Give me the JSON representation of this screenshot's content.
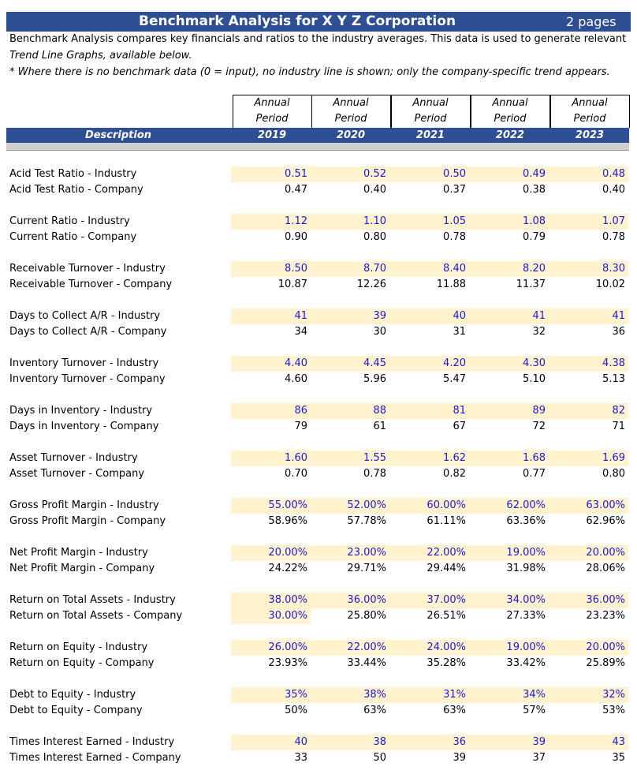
{
  "header": {
    "title": "Benchmark Analysis for X Y Z Corporation",
    "pages": "2 pages"
  },
  "intro": [
    "Benchmark Analysis compares key financials and ratios to the industry averages. This data is used to generate relevant",
    "Trend Line Graphs, available below.",
    "* Where there is no benchmark data (0 = input), no industry line is shown; only the company-specific trend appears."
  ],
  "table": {
    "description": "Description",
    "columns": [
      {
        "line1": "Annual",
        "line2": "Period",
        "year": "2019"
      },
      {
        "line1": "Annual",
        "line2": "Period",
        "year": "2020"
      },
      {
        "line1": "Annual",
        "line2": "Period",
        "year": "2021"
      },
      {
        "line1": "Annual",
        "line2": "Period",
        "year": "2022"
      },
      {
        "line1": "Annual",
        "line2": "Period",
        "year": "2023"
      }
    ],
    "rows": [
      {
        "label": "Acid Test Ratio - Industry",
        "values": [
          "0.51",
          "0.52",
          "0.50",
          "0.49",
          "0.48"
        ]
      },
      {
        "label": "Acid Test Ratio - Company",
        "values": [
          "0.47",
          "0.40",
          "0.37",
          "0.38",
          "0.40"
        ]
      },
      {
        "label": "Current Ratio - Industry",
        "values": [
          "1.12",
          "1.10",
          "1.05",
          "1.08",
          "1.07"
        ]
      },
      {
        "label": "Current Ratio - Company",
        "values": [
          "0.90",
          "0.80",
          "0.78",
          "0.79",
          "0.78"
        ]
      },
      {
        "label": "Receivable Turnover - Industry",
        "values": [
          "8.50",
          "8.70",
          "8.40",
          "8.20",
          "8.30"
        ]
      },
      {
        "label": "Receivable Turnover - Company",
        "values": [
          "10.87",
          "12.26",
          "11.88",
          "11.37",
          "10.02"
        ]
      },
      {
        "label": "Days to Collect A/R - Industry",
        "values": [
          "41",
          "39",
          "40",
          "41",
          "41"
        ]
      },
      {
        "label": "Days to Collect A/R - Company",
        "values": [
          "34",
          "30",
          "31",
          "32",
          "36"
        ]
      },
      {
        "label": "Inventory Turnover - Industry",
        "values": [
          "4.40",
          "4.45",
          "4.20",
          "4.30",
          "4.38"
        ]
      },
      {
        "label": "Inventory Turnover - Company",
        "values": [
          "4.60",
          "5.96",
          "5.47",
          "5.10",
          "5.13"
        ]
      },
      {
        "label": "Days in Inventory - Industry",
        "values": [
          "86",
          "88",
          "81",
          "89",
          "82"
        ]
      },
      {
        "label": "Days in Inventory - Company",
        "values": [
          "79",
          "61",
          "67",
          "72",
          "71"
        ]
      },
      {
        "label": "Asset Turnover - Industry",
        "values": [
          "1.60",
          "1.55",
          "1.62",
          "1.68",
          "1.69"
        ]
      },
      {
        "label": "Asset Turnover - Company",
        "values": [
          "0.70",
          "0.78",
          "0.82",
          "0.77",
          "0.80"
        ]
      },
      {
        "label": "Gross Profit Margin - Industry",
        "values": [
          "55.00%",
          "52.00%",
          "60.00%",
          "62.00%",
          "63.00%"
        ]
      },
      {
        "label": "Gross Profit Margin - Company",
        "values": [
          "58.96%",
          "57.78%",
          "61.11%",
          "63.36%",
          "62.96%"
        ]
      },
      {
        "label": "Net Profit Margin - Industry",
        "values": [
          "20.00%",
          "23.00%",
          "22.00%",
          "19.00%",
          "20.00%"
        ]
      },
      {
        "label": "Net Profit Margin - Company",
        "values": [
          "24.22%",
          "29.71%",
          "29.44%",
          "31.98%",
          "28.06%"
        ]
      },
      {
        "label": "Return on Total Assets - Industry",
        "values": [
          "38.00%",
          "36.00%",
          "37.00%",
          "34.00%",
          "36.00%"
        ]
      },
      {
        "label": "Return on Total Assets - Company",
        "values": [
          "30.00%",
          "25.80%",
          "26.51%",
          "27.33%",
          "23.23%"
        ]
      },
      {
        "label": "Return on Equity - Industry",
        "values": [
          "26.00%",
          "22.00%",
          "24.00%",
          "19.00%",
          "20.00%"
        ]
      },
      {
        "label": "Return on Equity - Company",
        "values": [
          "23.93%",
          "33.44%",
          "35.28%",
          "33.42%",
          "25.89%"
        ]
      },
      {
        "label": "Debt to Equity - Industry",
        "values": [
          "35%",
          "38%",
          "31%",
          "34%",
          "32%"
        ]
      },
      {
        "label": "Debt to Equity - Company",
        "values": [
          "50%",
          "63%",
          "63%",
          "57%",
          "53%"
        ]
      },
      {
        "label": "Times Interest Earned - Industry",
        "values": [
          "40",
          "38",
          "36",
          "39",
          "43"
        ]
      },
      {
        "label": "Times Interest Earned - Company",
        "values": [
          "33",
          "50",
          "39",
          "37",
          "35"
        ]
      }
    ]
  }
}
